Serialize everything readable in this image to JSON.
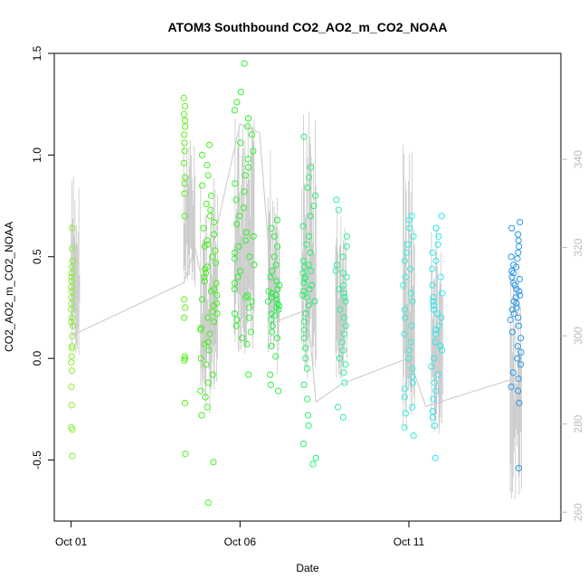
{
  "chart_data": {
    "type": "scatter",
    "title": "ATOM3 Southbound CO2_AO2_m_CO2_NOAA",
    "xlabel": "Date",
    "ylabel": "CO2_AO2_m_CO2_NOAA",
    "xlim": [
      "2016-09-30T12:00",
      "2016-10-15T12:00"
    ],
    "ylim": [
      -0.8,
      1.5
    ],
    "x_ticks": [
      {
        "date": "2016-10-01",
        "label": "Oct 01"
      },
      {
        "date": "2016-10-06",
        "label": "Oct 06"
      },
      {
        "date": "2016-10-11",
        "label": "Oct 11"
      }
    ],
    "y_ticks": [
      -0.5,
      0.0,
      0.5,
      1.0,
      1.5
    ],
    "y_tick_labels": [
      "-0.5",
      "0.0",
      "0.5",
      "1.0",
      "1.5"
    ],
    "y2lim": [
      258,
      364
    ],
    "y2_ticks": [
      260,
      280,
      300,
      320,
      340
    ],
    "y2_tick_labels": [
      "260",
      "280",
      "300",
      "320",
      "340"
    ],
    "grid": false,
    "legend": "none",
    "colors": {
      "axis": "#000000",
      "right_axis": "#bdbdbd",
      "trace_line": "#c8c8c8"
    },
    "secondary_trace": {
      "name": "",
      "points": [
        [
          "2016-10-01T00:00",
          300.0
        ],
        [
          "2016-10-04T08:00",
          312.0
        ],
        [
          "2016-10-04T16:00",
          320.0
        ],
        [
          "2016-10-04T22:00",
          311.0
        ],
        [
          "2016-10-06T00:00",
          348.0
        ],
        [
          "2016-10-06T14:00",
          346.0
        ],
        [
          "2016-10-06T22:00",
          312.0
        ],
        [
          "2016-10-07T00:00",
          303.0
        ],
        [
          "2016-10-08T00:00",
          306.0
        ],
        [
          "2016-10-08T04:00",
          292.0
        ],
        [
          "2016-10-08T06:00",
          285.0
        ],
        [
          "2016-10-09T00:00",
          289.0
        ],
        [
          "2016-10-11T00:00",
          295.0
        ],
        [
          "2016-10-11T12:00",
          284.0
        ],
        [
          "2016-10-14T00:00",
          290.0
        ]
      ],
      "segments": [
        {
          "x": "2016-10-01T00:00",
          "x2": "2016-10-01T06:00",
          "low": 295,
          "high": 338
        },
        {
          "x": "2016-10-04T08:00",
          "x2": "2016-10-04T16:00",
          "low": 310,
          "high": 346
        },
        {
          "x": "2016-10-04T20:00",
          "x2": "2016-10-05T08:00",
          "low": 282,
          "high": 336
        },
        {
          "x": "2016-10-05T20:00",
          "x2": "2016-10-06T10:00",
          "low": 296,
          "high": 350
        },
        {
          "x": "2016-10-06T20:00",
          "x2": "2016-10-07T04:00",
          "low": 290,
          "high": 346
        },
        {
          "x": "2016-10-07T20:00",
          "x2": "2016-10-08T06:00",
          "low": 290,
          "high": 352
        },
        {
          "x": "2016-10-08T20:00",
          "x2": "2016-10-09T04:00",
          "low": 290,
          "high": 330
        },
        {
          "x": "2016-10-10T20:00",
          "x2": "2016-10-11T04:00",
          "low": 275,
          "high": 347
        },
        {
          "x": "2016-10-11T16:00",
          "x2": "2016-10-12T00:00",
          "low": 277,
          "high": 326
        },
        {
          "x": "2016-10-14T00:00",
          "x2": "2016-10-14T08:00",
          "low": 263,
          "high": 316
        }
      ]
    },
    "series": [
      {
        "name": "",
        "color": "#88f030",
        "x": [
          "2016-10-01T00:00"
        ],
        "points": [
          -0.48,
          -0.35,
          -0.34,
          -0.23,
          -0.14,
          -0.06,
          -0.02,
          0.01,
          0.05,
          0.06,
          0.11,
          0.16,
          0.18,
          0.2,
          0.24,
          0.27,
          0.3,
          0.33,
          0.35,
          0.38,
          0.4,
          0.42,
          0.45,
          0.48,
          0.54,
          0.64
        ]
      },
      {
        "name": "",
        "color": "#5cf020",
        "x": [
          "2016-10-04T08:00"
        ],
        "points": [
          -0.47,
          -0.22,
          -0.01,
          0.0,
          0.01,
          0.2,
          0.25,
          0.29,
          0.7,
          0.81,
          0.86,
          0.89,
          0.96,
          1.02,
          1.06,
          1.1,
          1.14,
          1.17,
          1.2,
          1.24,
          1.28
        ]
      },
      {
        "name": "",
        "color": "#48f020",
        "x": [
          "2016-10-04T20:00",
          "2016-10-05T08:00"
        ],
        "points": [
          -0.71,
          -0.51,
          -0.28,
          -0.24,
          -0.19,
          -0.16,
          -0.12,
          -0.08,
          -0.03,
          0.0,
          0.04,
          0.08,
          0.12,
          0.15,
          0.18,
          0.2,
          0.23,
          0.26,
          0.29,
          0.31,
          0.34,
          0.37,
          0.4,
          0.42,
          0.45,
          0.47,
          0.5,
          0.53,
          0.56,
          0.58,
          0.61,
          0.64,
          0.67,
          0.7,
          0.73,
          0.76,
          0.8,
          0.85,
          0.9,
          0.95,
          1.0,
          1.05,
          0.07,
          0.14,
          0.22,
          0.33,
          0.44,
          0.55,
          0.27,
          0.38
        ]
      },
      {
        "name": "",
        "color": "#30f030",
        "x": [
          "2016-10-05T20:00",
          "2016-10-06T10:00"
        ],
        "points": [
          -0.08,
          0.07,
          0.1,
          0.13,
          0.16,
          0.19,
          0.22,
          0.25,
          0.28,
          0.31,
          0.34,
          0.37,
          0.4,
          0.43,
          0.46,
          0.49,
          0.52,
          0.55,
          0.58,
          0.62,
          0.66,
          0.7,
          0.74,
          0.78,
          0.82,
          0.86,
          0.9,
          0.94,
          0.98,
          1.02,
          1.06,
          1.1,
          1.14,
          1.18,
          1.22,
          1.26,
          1.31,
          1.45,
          0.2,
          0.3,
          0.5,
          0.6
        ]
      },
      {
        "name": "",
        "color": "#28f048",
        "x": [
          "2016-10-06T20:00",
          "2016-10-07T04:00"
        ],
        "points": [
          -0.16,
          -0.13,
          -0.08,
          0.01,
          0.06,
          0.1,
          0.13,
          0.16,
          0.19,
          0.22,
          0.24,
          0.26,
          0.28,
          0.3,
          0.32,
          0.34,
          0.36,
          0.38,
          0.4,
          0.43,
          0.46,
          0.5,
          0.55,
          0.6,
          0.64,
          0.68,
          0.25,
          0.27,
          0.29,
          0.31,
          0.21,
          0.33
        ]
      },
      {
        "name": "",
        "color": "#28f070",
        "x": [
          "2016-10-07T20:00",
          "2016-10-08T06:00"
        ],
        "points": [
          -0.52,
          -0.49,
          -0.42,
          -0.33,
          -0.28,
          -0.2,
          -0.13,
          -0.05,
          0.0,
          0.05,
          0.1,
          0.14,
          0.18,
          0.22,
          0.26,
          0.3,
          0.33,
          0.36,
          0.39,
          0.42,
          0.45,
          0.48,
          0.52,
          0.56,
          0.6,
          0.65,
          0.7,
          0.75,
          0.8,
          0.84,
          0.89,
          0.94,
          1.09,
          0.28,
          0.34,
          0.4,
          0.46,
          0.31,
          0.37,
          0.43
        ]
      },
      {
        "name": "",
        "color": "#30f098",
        "x": [
          "2016-10-08T20:00",
          "2016-10-09T04:00"
        ],
        "points": [
          -0.29,
          -0.24,
          -0.12,
          -0.07,
          -0.03,
          0.0,
          0.04,
          0.08,
          0.12,
          0.16,
          0.2,
          0.24,
          0.28,
          0.32,
          0.36,
          0.4,
          0.43,
          0.46,
          0.5,
          0.55,
          0.6,
          0.73,
          0.78,
          0.3,
          0.34,
          0.42
        ]
      },
      {
        "name": "",
        "color": "#30f0e0",
        "x": [
          "2016-10-10T20:00",
          "2016-10-11T04:00"
        ],
        "points": [
          -0.38,
          -0.34,
          -0.27,
          -0.24,
          -0.19,
          -0.15,
          -0.12,
          -0.09,
          -0.05,
          0.0,
          0.04,
          0.08,
          0.12,
          0.16,
          0.2,
          0.24,
          0.28,
          0.32,
          0.36,
          0.4,
          0.44,
          0.48,
          0.52,
          0.56,
          0.6,
          0.64,
          0.68,
          0.7
        ]
      },
      {
        "name": "",
        "color": "#30e8f0",
        "x": [
          "2016-10-11T16:00",
          "2016-10-12T00:00"
        ],
        "points": [
          -0.49,
          -0.33,
          -0.29,
          -0.26,
          -0.2,
          -0.16,
          -0.12,
          -0.08,
          -0.04,
          0.0,
          0.04,
          0.08,
          0.12,
          0.16,
          0.2,
          0.24,
          0.28,
          0.32,
          0.36,
          0.4,
          0.44,
          0.48,
          0.52,
          0.56,
          0.6,
          0.64,
          0.7,
          0.3,
          0.26,
          0.22,
          0.14,
          0.06
        ]
      },
      {
        "name": "",
        "color": "#2898e8",
        "x": [
          "2016-10-14T00:00",
          "2016-10-14T08:00"
        ],
        "points": [
          -0.54,
          -0.22,
          -0.16,
          -0.14,
          -0.1,
          -0.07,
          -0.03,
          0.0,
          0.03,
          0.06,
          0.1,
          0.13,
          0.16,
          0.19,
          0.22,
          0.25,
          0.28,
          0.31,
          0.34,
          0.37,
          0.4,
          0.43,
          0.46,
          0.49,
          0.52,
          0.55,
          0.58,
          0.61,
          0.64,
          0.67,
          0.3,
          0.33,
          0.36,
          0.27,
          0.24,
          0.39,
          0.42,
          0.2,
          0.45,
          0.5
        ]
      }
    ]
  }
}
